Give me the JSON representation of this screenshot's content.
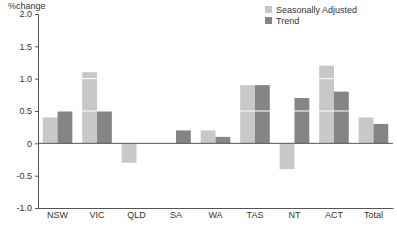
{
  "chart_data": {
    "type": "bar",
    "y_label": "%change",
    "categories": [
      "NSW",
      "VIC",
      "QLD",
      "SA",
      "WA",
      "TAS",
      "NT",
      "ACT",
      "Total"
    ],
    "series": [
      {
        "name": "Seasonally Adjusted",
        "color": "#c8c8c8",
        "values": [
          0.4,
          1.1,
          -0.3,
          0.0,
          0.2,
          0.9,
          -0.4,
          1.2,
          0.4
        ]
      },
      {
        "name": "Trend",
        "color": "#858585",
        "values": [
          0.5,
          0.5,
          0.0,
          0.2,
          0.1,
          0.9,
          0.7,
          0.8,
          0.3
        ]
      }
    ],
    "ylim": [
      -1,
      2
    ],
    "yticks": [
      {
        "value": -1,
        "label": "-1.0"
      },
      -0.5,
      0,
      0.5,
      {
        "value": 1,
        "label": "1.0"
      },
      1.5,
      {
        "value": 2,
        "label": "2.0"
      }
    ],
    "grid": true,
    "legend": "upper right"
  }
}
